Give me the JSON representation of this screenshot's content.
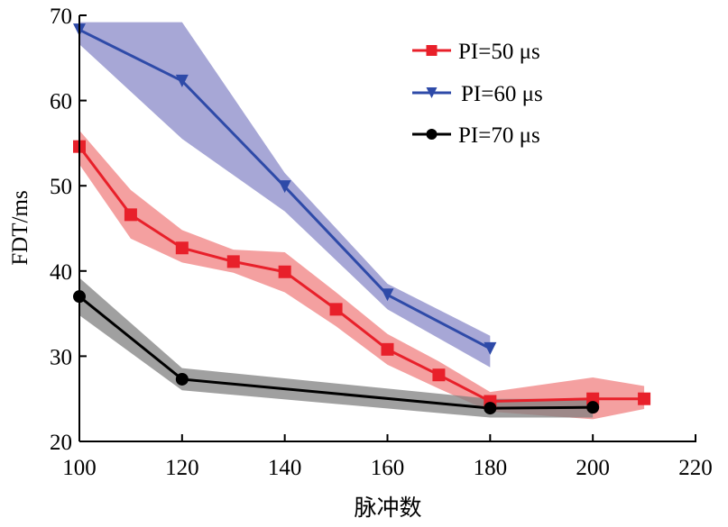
{
  "chart_data": {
    "type": "line",
    "title": "",
    "xlabel": "脉冲数",
    "ylabel": "FDT/ms",
    "xlim": [
      100,
      220
    ],
    "ylim": [
      20,
      70
    ],
    "xticks": [
      100,
      120,
      140,
      160,
      180,
      200,
      220
    ],
    "yticks": [
      20,
      30,
      40,
      50,
      60,
      70
    ],
    "grid": false,
    "legend_position": "top-right",
    "series": [
      {
        "name": "PI=50 μs",
        "color": "#e8202a",
        "band_color": "#f08080",
        "marker": "square",
        "x": [
          100,
          110,
          120,
          130,
          140,
          150,
          160,
          170,
          180,
          200,
          210
        ],
        "y": [
          54.6,
          46.6,
          42.7,
          41.1,
          39.9,
          35.5,
          30.8,
          27.8,
          24.7,
          25.0,
          25.0
        ],
        "upper": [
          56.5,
          49.5,
          44.8,
          42.5,
          42.2,
          37.5,
          32.6,
          29.4,
          25.8,
          27.5,
          26.5
        ],
        "lower": [
          52.5,
          43.8,
          41.0,
          39.8,
          37.5,
          33.5,
          29.0,
          26.2,
          23.5,
          22.6,
          23.8
        ]
      },
      {
        "name": "PI=60 μs",
        "color": "#2e4aa8",
        "band_color": "#8a8ac8",
        "marker": "triangle-down",
        "x": [
          100,
          120,
          140,
          160,
          180
        ],
        "y": [
          68.3,
          62.3,
          49.9,
          37.2,
          30.9
        ],
        "upper": [
          69.2,
          69.2,
          51.5,
          38.5,
          32.4
        ],
        "lower": [
          66.6,
          55.5,
          47.0,
          35.5,
          28.7
        ]
      },
      {
        "name": "PI=70 μs",
        "color": "#000000",
        "band_color": "#808080",
        "marker": "circle",
        "x": [
          100,
          120,
          180,
          200
        ],
        "y": [
          37.0,
          27.3,
          23.9,
          24.0
        ],
        "upper": [
          39.2,
          28.6,
          25.0,
          25.0
        ],
        "lower": [
          34.8,
          26.0,
          22.8,
          22.8
        ]
      }
    ]
  }
}
